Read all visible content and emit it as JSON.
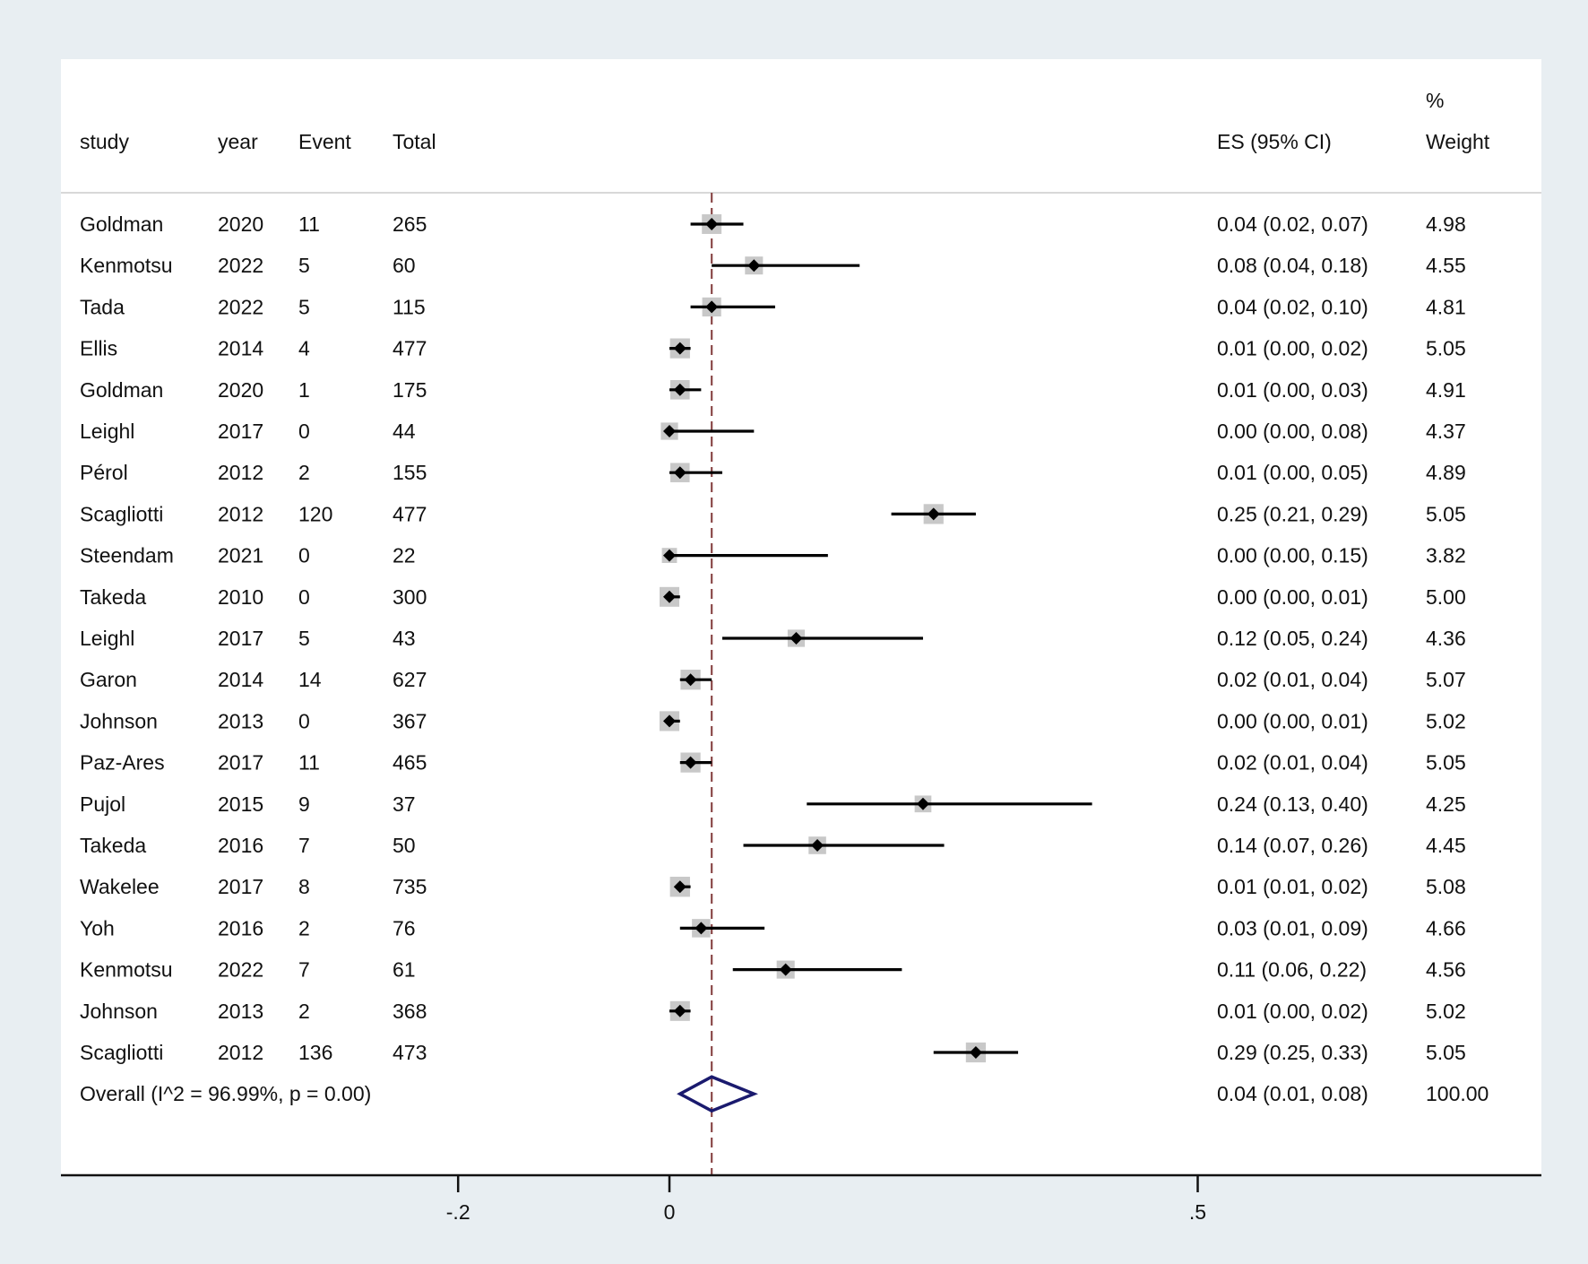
{
  "chart_data": {
    "type": "forest",
    "headers": {
      "study": "study",
      "year": "year",
      "event": "Event",
      "total": "Total",
      "es": "ES (95% CI)",
      "weight_top": "%",
      "weight": "Weight"
    },
    "x_ticks": [
      {
        "value": -0.2,
        "label": "-.2"
      },
      {
        "value": 0,
        "label": "0"
      },
      {
        "value": 0.5,
        "label": ".5"
      }
    ],
    "xlim": [
      -0.2,
      0.5
    ],
    "reference_line": 0.04,
    "rows": [
      {
        "study": "Goldman",
        "year": "2020",
        "event": "11",
        "total": "265",
        "es": 0.04,
        "lo": 0.02,
        "hi": 0.07,
        "es_text": "0.04 (0.02, 0.07)",
        "weight": "4.98"
      },
      {
        "study": "Kenmotsu",
        "year": "2022",
        "event": "5",
        "total": "60",
        "es": 0.08,
        "lo": 0.04,
        "hi": 0.18,
        "es_text": "0.08 (0.04, 0.18)",
        "weight": "4.55"
      },
      {
        "study": "Tada",
        "year": "2022",
        "event": "5",
        "total": "115",
        "es": 0.04,
        "lo": 0.02,
        "hi": 0.1,
        "es_text": "0.04 (0.02, 0.10)",
        "weight": "4.81"
      },
      {
        "study": "Ellis",
        "year": "2014",
        "event": "4",
        "total": "477",
        "es": 0.01,
        "lo": 0.0,
        "hi": 0.02,
        "es_text": "0.01 (0.00, 0.02)",
        "weight": "5.05"
      },
      {
        "study": "Goldman",
        "year": "2020",
        "event": "1",
        "total": "175",
        "es": 0.01,
        "lo": 0.0,
        "hi": 0.03,
        "es_text": "0.01 (0.00, 0.03)",
        "weight": "4.91"
      },
      {
        "study": "Leighl",
        "year": "2017",
        "event": "0",
        "total": "44",
        "es": 0.0,
        "lo": 0.0,
        "hi": 0.08,
        "es_text": "0.00 (0.00, 0.08)",
        "weight": "4.37"
      },
      {
        "study": "Pérol",
        "year": "2012",
        "event": "2",
        "total": "155",
        "es": 0.01,
        "lo": 0.0,
        "hi": 0.05,
        "es_text": "0.01 (0.00, 0.05)",
        "weight": "4.89"
      },
      {
        "study": "Scagliotti",
        "year": "2012",
        "event": "120",
        "total": "477",
        "es": 0.25,
        "lo": 0.21,
        "hi": 0.29,
        "es_text": "0.25 (0.21, 0.29)",
        "weight": "5.05"
      },
      {
        "study": "Steendam",
        "year": "2021",
        "event": "0",
        "total": "22",
        "es": 0.0,
        "lo": 0.0,
        "hi": 0.15,
        "es_text": "0.00 (0.00, 0.15)",
        "weight": "3.82"
      },
      {
        "study": "Takeda",
        "year": "2010",
        "event": "0",
        "total": "300",
        "es": 0.0,
        "lo": 0.0,
        "hi": 0.01,
        "es_text": "0.00 (0.00, 0.01)",
        "weight": "5.00"
      },
      {
        "study": "Leighl",
        "year": "2017",
        "event": "5",
        "total": "43",
        "es": 0.12,
        "lo": 0.05,
        "hi": 0.24,
        "es_text": "0.12 (0.05, 0.24)",
        "weight": "4.36"
      },
      {
        "study": "Garon",
        "year": "2014",
        "event": "14",
        "total": "627",
        "es": 0.02,
        "lo": 0.01,
        "hi": 0.04,
        "es_text": "0.02 (0.01, 0.04)",
        "weight": "5.07"
      },
      {
        "study": "Johnson",
        "year": "2013",
        "event": "0",
        "total": "367",
        "es": 0.0,
        "lo": 0.0,
        "hi": 0.01,
        "es_text": "0.00 (0.00, 0.01)",
        "weight": "5.02"
      },
      {
        "study": "Paz-Ares",
        "year": "2017",
        "event": "11",
        "total": "465",
        "es": 0.02,
        "lo": 0.01,
        "hi": 0.04,
        "es_text": "0.02 (0.01, 0.04)",
        "weight": "5.05"
      },
      {
        "study": "Pujol",
        "year": "2015",
        "event": "9",
        "total": "37",
        "es": 0.24,
        "lo": 0.13,
        "hi": 0.4,
        "es_text": "0.24 (0.13, 0.40)",
        "weight": "4.25"
      },
      {
        "study": "Takeda",
        "year": "2016",
        "event": "7",
        "total": "50",
        "es": 0.14,
        "lo": 0.07,
        "hi": 0.26,
        "es_text": "0.14 (0.07, 0.26)",
        "weight": "4.45"
      },
      {
        "study": "Wakelee",
        "year": "2017",
        "event": "8",
        "total": "735",
        "es": 0.01,
        "lo": 0.01,
        "hi": 0.02,
        "es_text": "0.01 (0.01, 0.02)",
        "weight": "5.08"
      },
      {
        "study": "Yoh",
        "year": "2016",
        "event": "2",
        "total": "76",
        "es": 0.03,
        "lo": 0.01,
        "hi": 0.09,
        "es_text": "0.03 (0.01, 0.09)",
        "weight": "4.66"
      },
      {
        "study": "Kenmotsu",
        "year": "2022",
        "event": "7",
        "total": "61",
        "es": 0.11,
        "lo": 0.06,
        "hi": 0.22,
        "es_text": "0.11 (0.06, 0.22)",
        "weight": "4.56"
      },
      {
        "study": "Johnson",
        "year": "2013",
        "event": "2",
        "total": "368",
        "es": 0.01,
        "lo": 0.0,
        "hi": 0.02,
        "es_text": "0.01 (0.00, 0.02)",
        "weight": "5.02"
      },
      {
        "study": "Scagliotti",
        "year": "2012",
        "event": "136",
        "total": "473",
        "es": 0.29,
        "lo": 0.25,
        "hi": 0.33,
        "es_text": "0.29 (0.25, 0.33)",
        "weight": "5.05"
      }
    ],
    "overall": {
      "label": "Overall  (I^2 = 96.99%, p = 0.00)",
      "es": 0.04,
      "lo": 0.01,
      "hi": 0.08,
      "es_text": "0.04 (0.01, 0.08)",
      "weight": "100.00"
    },
    "colors": {
      "background": "#e8eef2",
      "panel": "#ffffff",
      "marker": "#000000",
      "weight_box": "#c8c8c8",
      "overall_diamond": "#1a1a6e",
      "reference_line": "#8b4a4a"
    }
  }
}
